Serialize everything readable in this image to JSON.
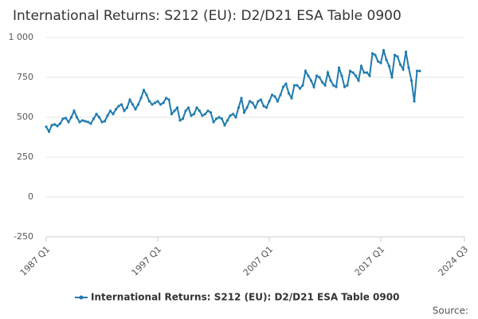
{
  "chart_data": {
    "type": "line",
    "title": "International Returns: S212 (EU): D2/D21 ESA Table 0900",
    "source": "Source:",
    "categories": [
      "1987 Q1",
      null,
      null,
      null,
      null,
      null,
      null,
      null,
      null,
      null,
      null,
      null,
      null,
      null,
      null,
      null,
      null,
      null,
      null,
      null,
      null,
      null,
      null,
      null,
      null,
      null,
      null,
      null,
      null,
      null,
      null,
      null,
      null,
      null,
      null,
      null,
      null,
      null,
      null,
      null,
      "1997 Q1",
      null,
      null,
      null,
      null,
      null,
      null,
      null,
      null,
      null,
      null,
      null,
      null,
      null,
      null,
      null,
      null,
      null,
      null,
      null,
      null,
      null,
      null,
      null,
      null,
      null,
      null,
      null,
      null,
      null,
      null,
      null,
      null,
      null,
      null,
      null,
      null,
      null,
      null,
      null,
      "2007 Q1",
      null,
      null,
      null,
      null,
      null,
      null,
      null,
      null,
      null,
      null,
      null,
      null,
      null,
      null,
      null,
      null,
      null,
      null,
      null,
      null,
      null,
      null,
      null,
      null,
      null,
      null,
      null,
      null,
      null,
      null,
      null,
      null,
      null,
      null,
      null,
      null,
      null,
      null,
      null,
      "2017 Q1",
      null,
      null,
      null,
      null,
      null,
      null,
      null,
      null,
      null,
      null,
      null,
      null,
      null,
      null,
      null,
      null,
      null,
      null,
      null,
      null,
      null,
      null,
      null,
      null,
      null,
      null,
      null,
      null,
      null,
      "2024 Q3"
    ],
    "series": [
      {
        "name": "International Returns: S212 (EU): D2/D21 ESA Table 0900",
        "color": "#1f7bb0",
        "values": [
          440,
          410,
          450,
          455,
          445,
          460,
          490,
          495,
          470,
          500,
          540,
          500,
          470,
          480,
          475,
          470,
          460,
          490,
          520,
          500,
          470,
          475,
          510,
          540,
          520,
          550,
          570,
          580,
          540,
          560,
          610,
          580,
          550,
          580,
          620,
          670,
          640,
          600,
          580,
          590,
          600,
          580,
          590,
          620,
          610,
          520,
          540,
          560,
          480,
          490,
          540,
          560,
          510,
          520,
          560,
          540,
          510,
          520,
          540,
          530,
          470,
          490,
          500,
          490,
          450,
          480,
          510,
          520,
          500,
          560,
          620,
          530,
          560,
          600,
          590,
          560,
          600,
          610,
          570,
          560,
          600,
          640,
          630,
          600,
          640,
          690,
          710,
          650,
          620,
          700,
          700,
          680,
          700,
          790,
          760,
          730,
          690,
          760,
          750,
          720,
          700,
          780,
          730,
          700,
          690,
          810,
          760,
          690,
          700,
          790,
          780,
          760,
          730,
          820,
          780,
          780,
          760,
          900,
          890,
          850,
          840,
          920,
          860,
          820,
          750,
          890,
          880,
          830,
          800,
          910,
          810,
          730,
          600,
          790,
          790,
          null,
          null,
          null,
          null,
          null,
          null,
          null,
          null,
          null,
          null,
          null,
          null,
          null,
          null,
          null,
          null
        ]
      }
    ],
    "ylim": [
      -250,
      1000
    ],
    "yticks": [
      -250,
      0,
      250,
      500,
      750,
      {
        "value": 1000,
        "label": "1 000"
      }
    ],
    "grid": true
  }
}
